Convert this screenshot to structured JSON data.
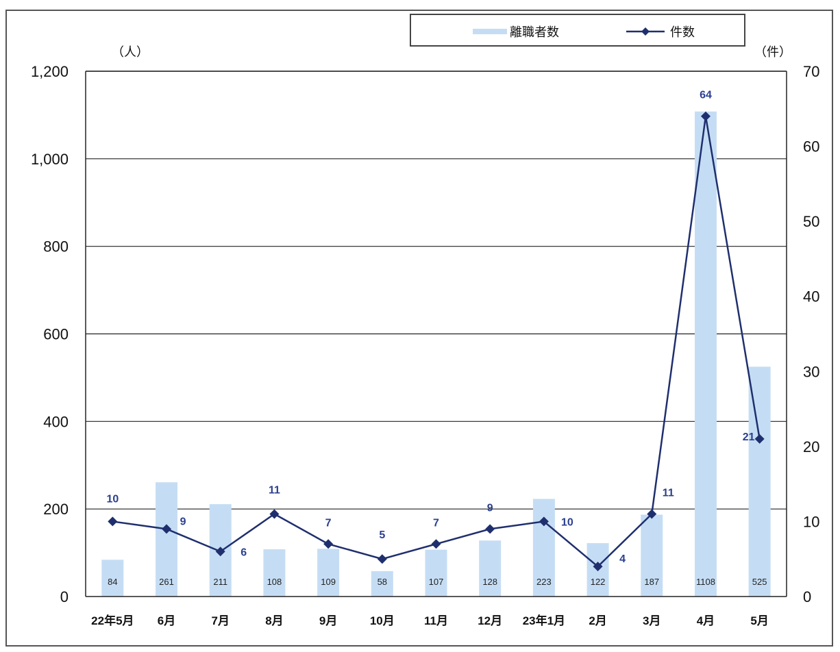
{
  "chart_data": {
    "type": "bar+line",
    "categories": [
      "22年5月",
      "6月",
      "7月",
      "8月",
      "9月",
      "10月",
      "11月",
      "12月",
      "23年1月",
      "2月",
      "3月",
      "4月",
      "5月"
    ],
    "series": [
      {
        "name": "離職者数",
        "type": "bar",
        "axis": "left",
        "values": [
          84,
          261,
          211,
          108,
          109,
          58,
          107,
          128,
          223,
          122,
          187,
          1108,
          525
        ],
        "color": "#c5ddf4"
      },
      {
        "name": "件数",
        "type": "line",
        "axis": "right",
        "marker": "diamond",
        "values": [
          10,
          9,
          6,
          11,
          7,
          5,
          7,
          9,
          10,
          4,
          11,
          64,
          21
        ],
        "color": "#1f2f6e"
      }
    ],
    "y_left": {
      "unit": "（人）",
      "min": 0,
      "max": 1200,
      "ticks": [
        "0",
        "200",
        "400",
        "600",
        "800",
        "1,000",
        "1,200"
      ]
    },
    "y_right": {
      "unit": "（件）",
      "min": 0,
      "max": 70,
      "ticks": [
        "0",
        "10",
        "20",
        "30",
        "40",
        "50",
        "60",
        "70"
      ]
    },
    "grid": true,
    "legend_position": "top-right"
  }
}
